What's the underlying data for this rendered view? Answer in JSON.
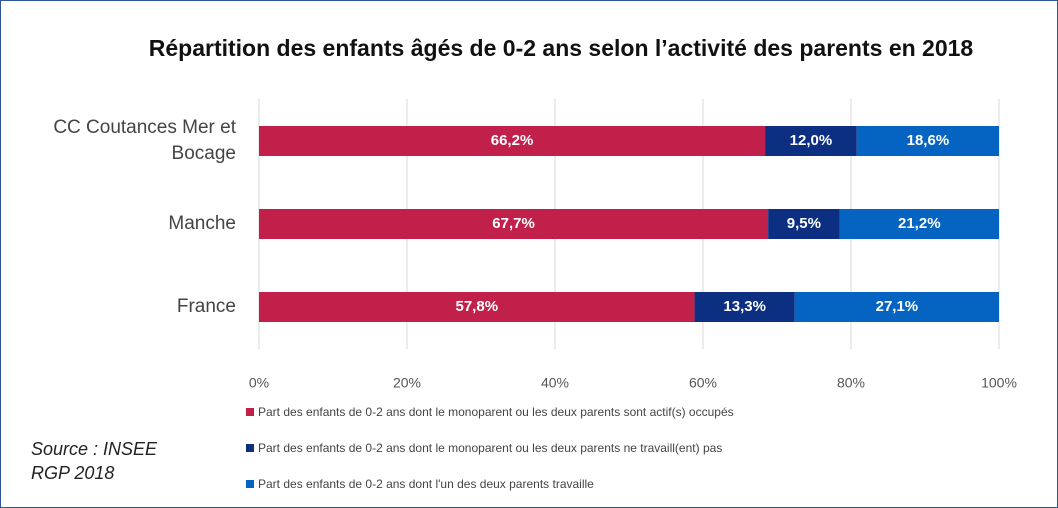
{
  "chart_data": {
    "type": "bar",
    "orientation": "horizontal",
    "stacking": "percent",
    "title": "Répartition des enfants âgés de 0-2 ans selon l’activité des parents en 2018",
    "categories": [
      "CC Coutances Mer et Bocage",
      "Manche",
      "France"
    ],
    "series": [
      {
        "name": "Part des enfants de 0-2 ans dont le monoparent ou les deux parents sont actif(s) occupés",
        "color": "#c0204a",
        "values": [
          66.2,
          67.7,
          57.8
        ],
        "value_labels": [
          "66,2%",
          "67,7%",
          "57,8%"
        ]
      },
      {
        "name": "Part des enfants de 0-2 ans dont le monoparent ou les deux parents ne travaill(ent) pas",
        "color": "#0c2f82",
        "values": [
          12.0,
          9.5,
          13.3
        ],
        "value_labels": [
          "12,0%",
          "9,5%",
          "13,3%"
        ]
      },
      {
        "name": "Part des enfants de 0-2 ans dont l'un des deux parents travaille",
        "color": "#0563c1",
        "values": [
          18.6,
          21.2,
          27.1
        ],
        "value_labels": [
          "18,6%",
          "21,2%",
          "27,1%"
        ]
      }
    ],
    "xlim": [
      0,
      100
    ],
    "xticks": [
      {
        "value": 0,
        "label": "0%"
      },
      {
        "value": 20,
        "label": "20%"
      },
      {
        "value": 40,
        "label": "40%"
      },
      {
        "value": 60,
        "label": "60%"
      },
      {
        "value": 80,
        "label": "80%"
      },
      {
        "value": 100,
        "label": "100%"
      }
    ],
    "grid": true,
    "legend": "bottom",
    "annotation": "Source : INSEE RGP 2018"
  }
}
